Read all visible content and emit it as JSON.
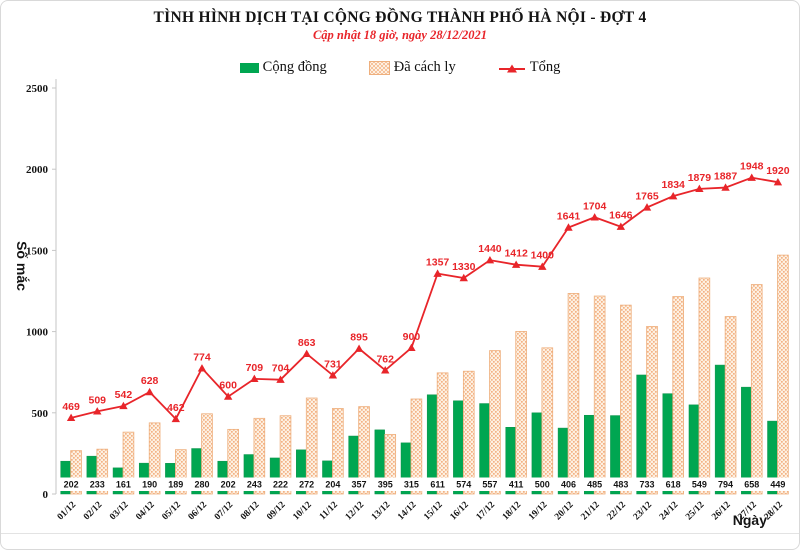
{
  "title": "TÌNH HÌNH DỊCH TẠI CỘNG ĐỒNG THÀNH PHỐ HÀ NỘI - ĐỢT 4",
  "subtitle": "Cập nhật 18 giờ, ngày 28/12/2021",
  "legend": [
    {
      "label": "Cộng đồng",
      "swatch": "solid-green-square",
      "color": "#00a651"
    },
    {
      "label": "Đã cách ly",
      "swatch": "dotted-orange-square",
      "color": "#f3b285"
    },
    {
      "label": "Tổng",
      "swatch": "red-line-triangle-marker",
      "color": "#e8252a"
    }
  ],
  "chart_data": {
    "type": "bar",
    "subtype": "grouped bars with overlaid line",
    "title": "TÌNH HÌNH DỊCH TẠI CỘNG ĐỒNG THÀNH PHỐ HÀ NỘI - ĐỢT 4",
    "subtitle": "Cập nhật 18 giờ, ngày 28/12/2021",
    "xlabel": "Ngày",
    "ylabel": "Số mắc",
    "ylim": [
      0,
      2500
    ],
    "yticks": [
      0,
      500,
      1000,
      1500,
      2000,
      2500
    ],
    "grid": false,
    "legend_position": "top",
    "categories": [
      "01/12",
      "02/12",
      "03/12",
      "04/12",
      "05/12",
      "06/12",
      "07/12",
      "08/12",
      "09/12",
      "10/12",
      "11/12",
      "12/12",
      "13/12",
      "14/12",
      "15/12",
      "16/12",
      "17/12",
      "18/12",
      "19/12",
      "20/12",
      "21/12",
      "22/12",
      "23/12",
      "24/12",
      "25/12",
      "26/12",
      "27/12",
      "28/12"
    ],
    "series": [
      {
        "name": "Cộng đồng",
        "render": "bar",
        "color": "#00a651",
        "labels_shown": true,
        "values": [
          202,
          233,
          161,
          190,
          189,
          280,
          202,
          243,
          222,
          272,
          204,
          357,
          395,
          315,
          611,
          574,
          557,
          411,
          500,
          406,
          485,
          483,
          733,
          618,
          549,
          794,
          658,
          449
        ]
      },
      {
        "name": "Đã cách ly",
        "render": "bar",
        "color": "#f3b285",
        "labels_shown": false,
        "values": [
          267,
          276,
          381,
          438,
          273,
          494,
          398,
          466,
          482,
          591,
          527,
          538,
          367,
          585,
          746,
          756,
          883,
          1001,
          900,
          1235,
          1219,
          1163,
          1032,
          1216,
          1330,
          1093,
          1290,
          1471
        ]
      },
      {
        "name": "Tổng",
        "render": "line",
        "color": "#e8252a",
        "marker": "triangle",
        "labels_shown": true,
        "values": [
          469,
          509,
          542,
          628,
          462,
          774,
          600,
          709,
          704,
          863,
          731,
          895,
          762,
          900,
          1357,
          1330,
          1440,
          1412,
          1400,
          1641,
          1704,
          1646,
          1765,
          1834,
          1879,
          1887,
          1948,
          1920
        ]
      }
    ]
  }
}
